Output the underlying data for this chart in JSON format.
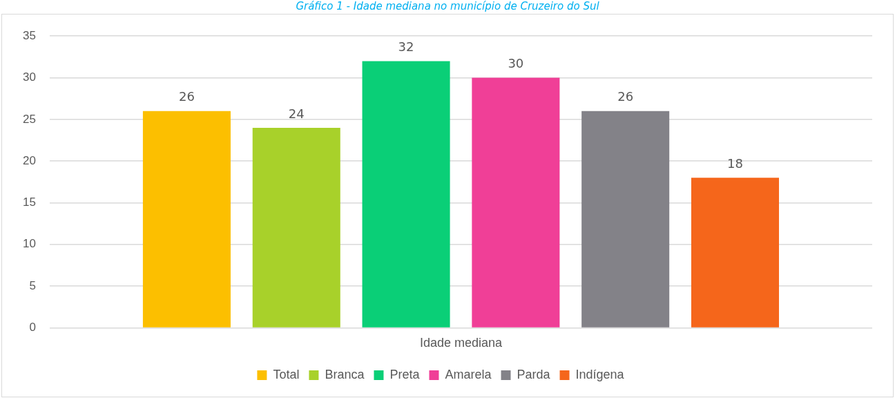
{
  "chart_data": {
    "type": "bar",
    "title": "Gráfico 1 - Idade mediana no município de Cruzeiro do Sul",
    "categories": [
      "Idade mediana"
    ],
    "series": [
      {
        "name": "Total",
        "color": "#fcbf00",
        "values": [
          26
        ]
      },
      {
        "name": "Branca",
        "color": "#a8d12a",
        "values": [
          24
        ]
      },
      {
        "name": "Preta",
        "color": "#0acf77",
        "values": [
          32
        ]
      },
      {
        "name": "Amarela",
        "color": "#f03f97",
        "values": [
          30
        ]
      },
      {
        "name": "Parda",
        "color": "#838288",
        "values": [
          26
        ]
      },
      {
        "name": "Indígena",
        "color": "#f5661b",
        "values": [
          18
        ]
      }
    ],
    "ylim": [
      0,
      35
    ],
    "yticks": [
      0,
      5,
      10,
      15,
      20,
      25,
      30,
      35
    ],
    "grid": "y",
    "legend": "bottom",
    "data_labels": true
  }
}
